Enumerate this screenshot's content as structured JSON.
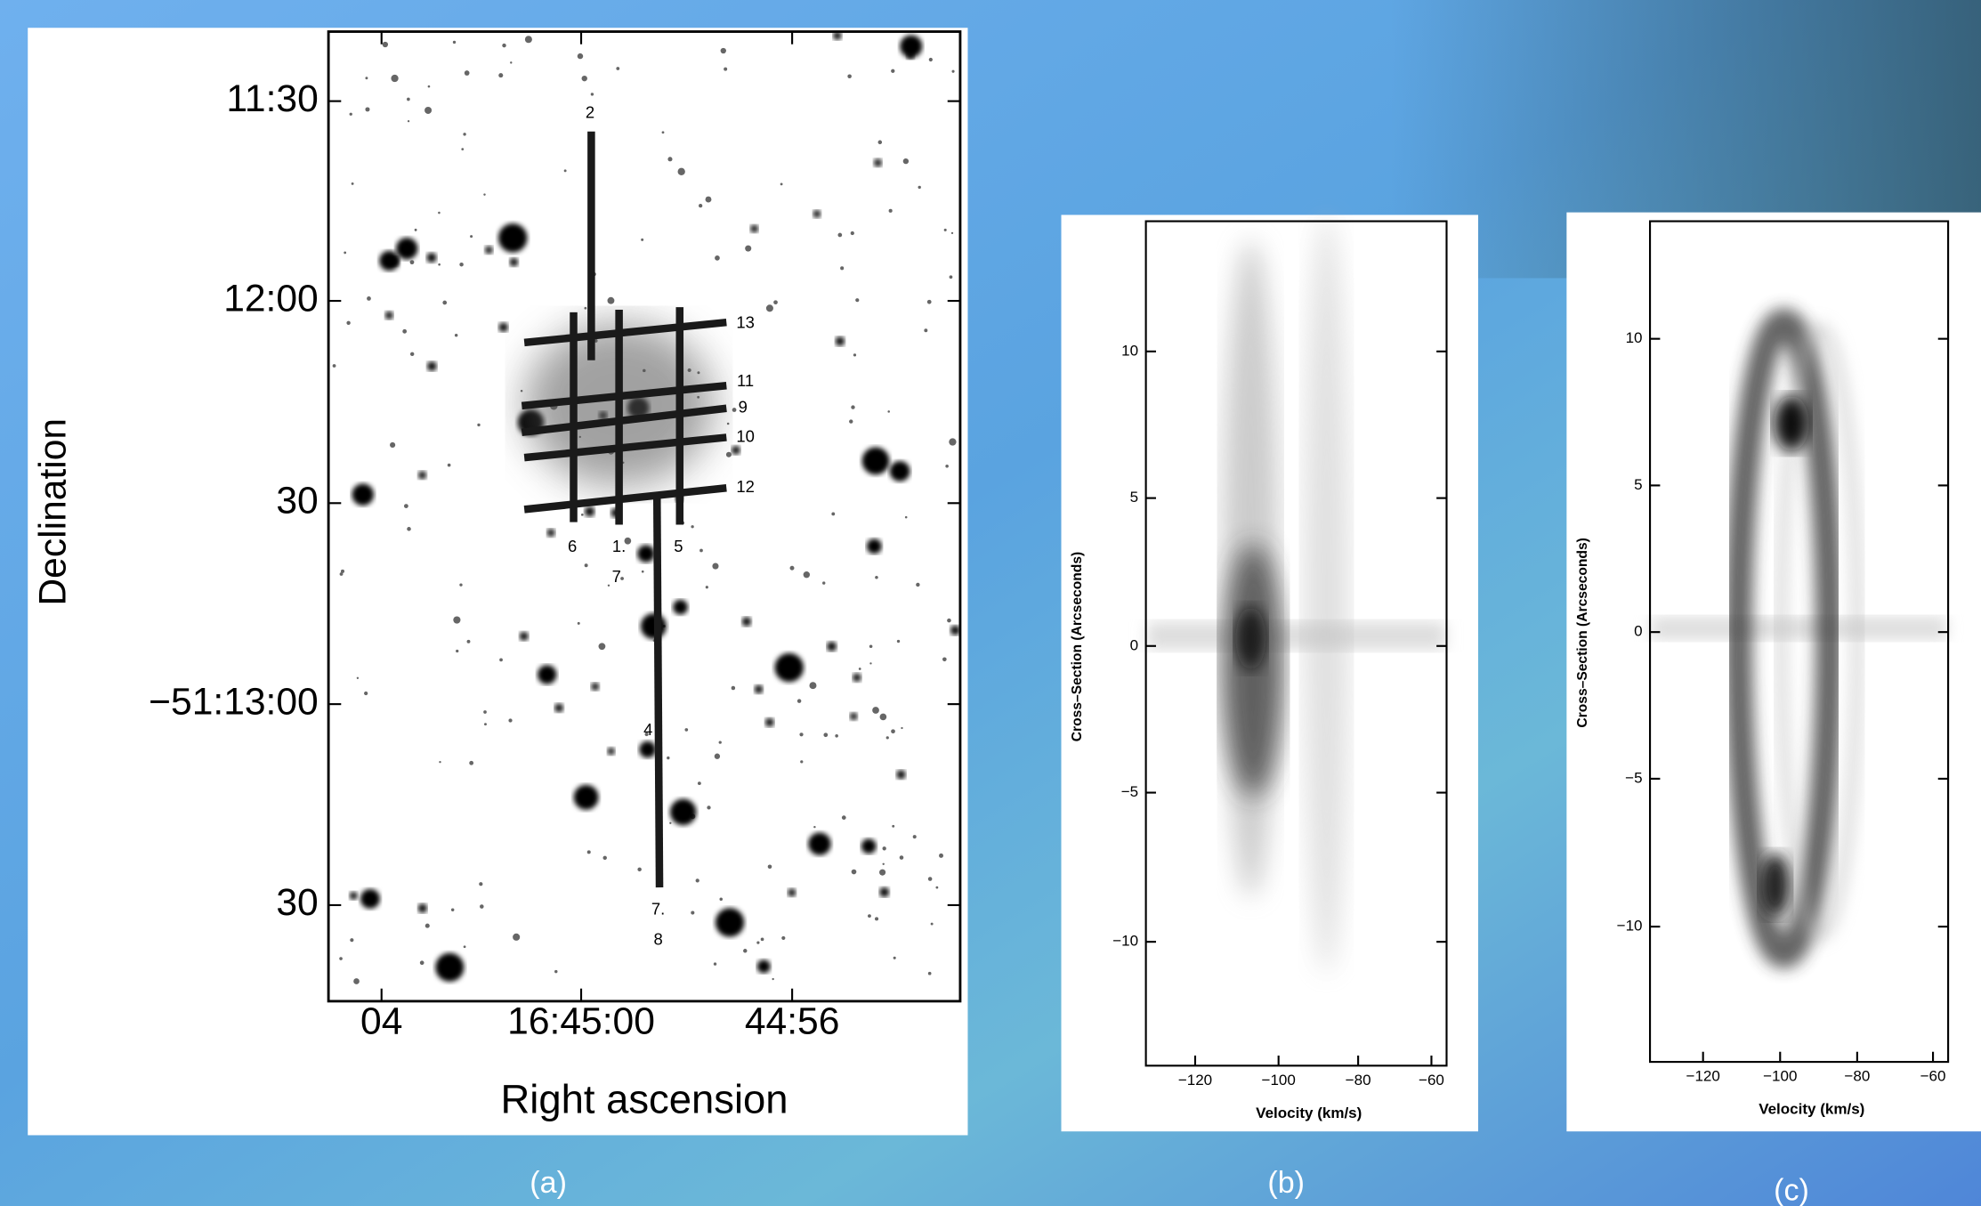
{
  "panels": [
    {
      "caption": "(a)",
      "y_label": "Declination",
      "x_label": "Right ascension",
      "y_ticks": [
        "11:30",
        "12:00",
        "30",
        "−51:13:00",
        "30"
      ],
      "x_ticks": [
        "04",
        "16:45:00",
        "44:56"
      ],
      "slit_labels": [
        "2",
        "13",
        "11",
        "9",
        "10",
        "12",
        "6",
        "1.",
        "7",
        "5",
        "4",
        "7.",
        "8"
      ]
    },
    {
      "caption": "(b)",
      "y_label": "Cross–Section (Arcseconds)",
      "x_label": "Velocity (km/s)",
      "y_ticks": [
        "10",
        "5",
        "0",
        "−5",
        "−10"
      ],
      "x_ticks": [
        "−120",
        "−100",
        "−80",
        "−60"
      ]
    },
    {
      "caption": "(c)",
      "y_label": "Cross–Section (Arcseconds)",
      "x_label": "Velocity (km/s)",
      "y_ticks": [
        "10",
        "5",
        "0",
        "−5",
        "−10"
      ],
      "x_ticks": [
        "−120",
        "−100",
        "−80",
        "−60"
      ]
    }
  ]
}
